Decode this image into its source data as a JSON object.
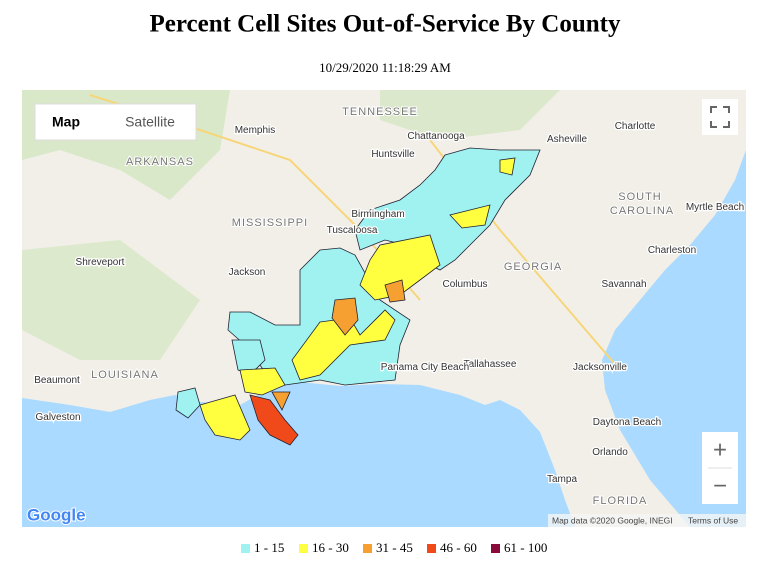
{
  "header": {
    "title": "Percent Cell Sites Out-of-Service By County",
    "timestamp": "10/29/2020 11:18:29 AM"
  },
  "map": {
    "controls": {
      "map": "Map",
      "satellite": "Satellite",
      "zoom_in": "+",
      "zoom_out": "−"
    },
    "labels": [
      "TENNESSEE",
      "ARKANSAS",
      "MISSISSIPPI",
      "GEORGIA",
      "SOUTH",
      "CAROLINA",
      "LOUISIANA",
      "FLORIDA",
      "Memphis",
      "Chattanooga",
      "Charlotte",
      "Huntsville",
      "Birmingham",
      "Tuscaloosa",
      "Charleston",
      "Myrtle Beach",
      "Shreveport",
      "Jackson",
      "Columbus",
      "Savannah",
      "Beaumont",
      "Galveston",
      "Tallahassee",
      "Panama City Beach",
      "Jacksonville",
      "Daytona Beach",
      "Orlando",
      "Tampa",
      "Asheville"
    ],
    "logo": "Google",
    "attribution": "Map data ©2020 Google, INEGI",
    "terms": "Terms of Use"
  },
  "legend": [
    {
      "label": "1 - 15",
      "color": "#9ff2f0"
    },
    {
      "label": "16 - 30",
      "color": "#ffff40"
    },
    {
      "label": "31 - 45",
      "color": "#f5a030"
    },
    {
      "label": "46 - 60",
      "color": "#f04a1a"
    },
    {
      "label": "61 - 100",
      "color": "#8c0a3a"
    }
  ]
}
